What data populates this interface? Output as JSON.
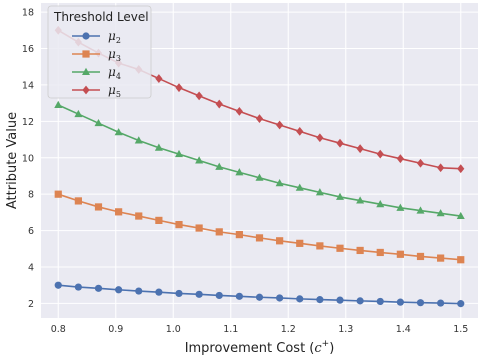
{
  "chart_data": {
    "type": "line",
    "xlabel": "Improvement Cost (",
    "xlabel_symbol": "c",
    "xlabel_sup": "+",
    "xlabel_close": ")",
    "ylabel": "Attribute Value",
    "xlim": [
      0.77,
      1.53
    ],
    "ylim": [
      1.2,
      18.5
    ],
    "xticks": [
      0.8,
      0.9,
      1.0,
      1.1,
      1.2,
      1.3,
      1.4,
      1.5
    ],
    "xtick_labels": [
      "0.8",
      "0.9",
      "1.0",
      "1.1",
      "1.2",
      "1.3",
      "1.4",
      "1.5"
    ],
    "yticks": [
      2,
      4,
      6,
      8,
      10,
      12,
      14,
      16,
      18
    ],
    "ytick_labels": [
      "2",
      "4",
      "6",
      "8",
      "10",
      "12",
      "14",
      "16",
      "18"
    ],
    "grid": true,
    "legend": {
      "title": "Threshold Level",
      "placement": "top-left"
    },
    "x": [
      0.8,
      0.835,
      0.87,
      0.905,
      0.94,
      0.975,
      1.01,
      1.045,
      1.08,
      1.115,
      1.15,
      1.185,
      1.22,
      1.255,
      1.29,
      1.325,
      1.36,
      1.395,
      1.43,
      1.465,
      1.5
    ],
    "series": [
      {
        "name": "μ2",
        "symbol": "μ",
        "sub": "2",
        "color": "#4c72b0",
        "marker": "circle",
        "values": [
          3.0,
          2.9,
          2.83,
          2.75,
          2.68,
          2.62,
          2.55,
          2.5,
          2.44,
          2.39,
          2.34,
          2.3,
          2.25,
          2.21,
          2.18,
          2.14,
          2.11,
          2.07,
          2.04,
          2.02,
          1.99
        ]
      },
      {
        "name": "μ3",
        "symbol": "μ",
        "sub": "3",
        "color": "#dd8452",
        "marker": "square",
        "values": [
          8.0,
          7.63,
          7.3,
          7.03,
          6.8,
          6.56,
          6.33,
          6.14,
          5.93,
          5.78,
          5.6,
          5.44,
          5.3,
          5.16,
          5.03,
          4.91,
          4.8,
          4.7,
          4.58,
          4.49,
          4.4
        ]
      },
      {
        "name": "μ4",
        "symbol": "μ",
        "sub": "4",
        "color": "#55a868",
        "marker": "triangle",
        "values": [
          12.9,
          12.4,
          11.9,
          11.4,
          10.95,
          10.55,
          10.2,
          9.85,
          9.5,
          9.2,
          8.9,
          8.6,
          8.35,
          8.1,
          7.85,
          7.65,
          7.45,
          7.25,
          7.1,
          6.95,
          6.8
        ]
      },
      {
        "name": "μ5",
        "symbol": "μ",
        "sub": "5",
        "color": "#c44e52",
        "marker": "diamond",
        "values": [
          17.0,
          16.35,
          15.75,
          15.2,
          14.85,
          14.35,
          13.85,
          13.4,
          12.95,
          12.55,
          12.15,
          11.8,
          11.45,
          11.1,
          10.8,
          10.5,
          10.2,
          9.95,
          9.7,
          9.45,
          9.4
        ]
      }
    ]
  }
}
